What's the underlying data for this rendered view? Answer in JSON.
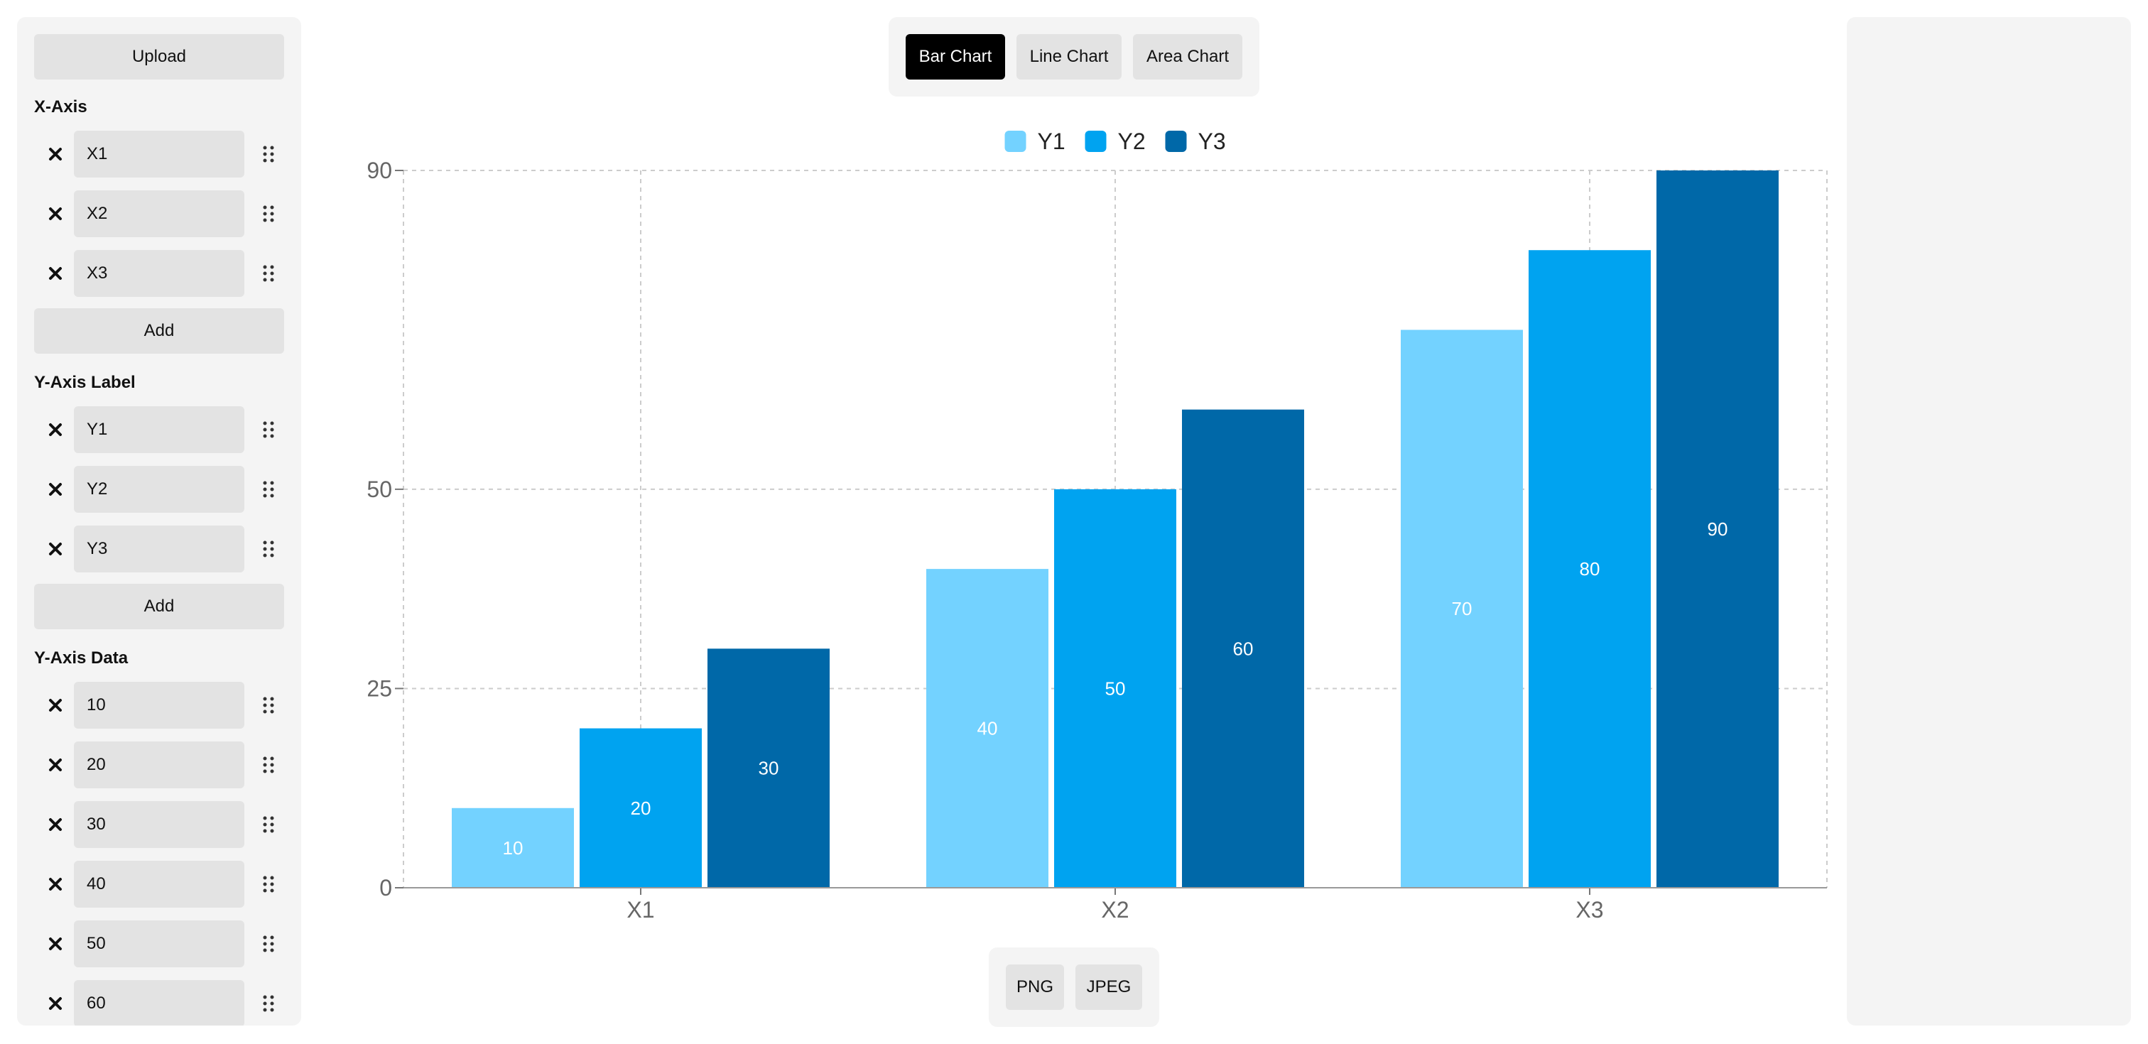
{
  "sidebar": {
    "upload_label": "Upload",
    "x_axis": {
      "title": "X-Axis",
      "items": [
        "X1",
        "X2",
        "X3"
      ],
      "add_label": "Add"
    },
    "y_labels": {
      "title": "Y-Axis Label",
      "items": [
        "Y1",
        "Y2",
        "Y3"
      ],
      "add_label": "Add"
    },
    "y_data": {
      "title": "Y-Axis Data",
      "items": [
        "10",
        "20",
        "30",
        "40",
        "50",
        "60"
      ]
    },
    "remove_icon": "close-icon",
    "drag_icon": "drag-handle-icon"
  },
  "toolbar": {
    "types": [
      "Bar Chart",
      "Line Chart",
      "Area Chart"
    ],
    "active_type": "Bar Chart"
  },
  "export": {
    "png_label": "PNG",
    "jpeg_label": "JPEG"
  },
  "chart_data": {
    "type": "bar",
    "categories": [
      "X1",
      "X2",
      "X3"
    ],
    "series": [
      {
        "name": "Y1",
        "values": [
          10,
          40,
          70
        ],
        "color": "#73d2ff"
      },
      {
        "name": "Y2",
        "values": [
          20,
          50,
          80
        ],
        "color": "#00a3f0"
      },
      {
        "name": "Y3",
        "values": [
          30,
          60,
          90
        ],
        "color": "#0068a8"
      }
    ],
    "y_ticks": [
      0,
      25,
      50,
      90
    ],
    "ylim": [
      0,
      90
    ],
    "grid": true,
    "legend_position": "top-center",
    "data_labels": true
  }
}
